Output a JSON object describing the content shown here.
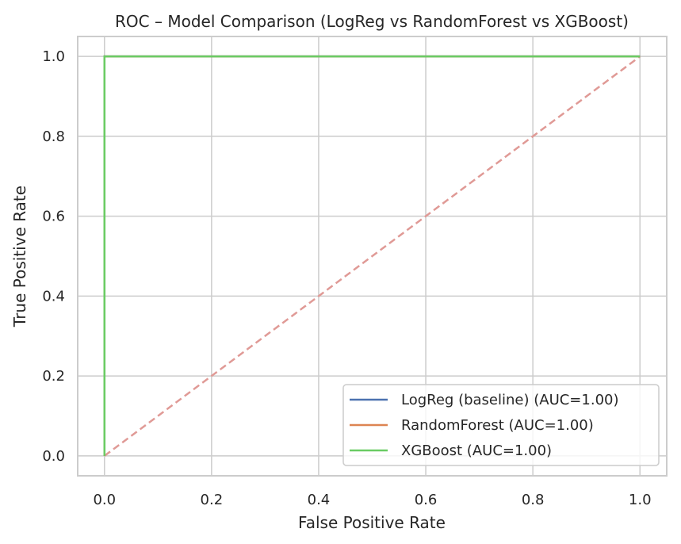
{
  "chart_data": {
    "type": "line",
    "title": "ROC – Model Comparison (LogReg vs RandomForest vs XGBoost)",
    "xlabel": "False Positive Rate",
    "ylabel": "True Positive Rate",
    "xlim": [
      -0.05,
      1.05
    ],
    "ylim": [
      -0.05,
      1.05
    ],
    "xticks": [
      0.0,
      0.2,
      0.4,
      0.6,
      0.8,
      1.0
    ],
    "yticks": [
      0.0,
      0.2,
      0.4,
      0.6,
      0.8,
      1.0
    ],
    "xtick_labels": [
      "0.0",
      "0.2",
      "0.4",
      "0.6",
      "0.8",
      "1.0"
    ],
    "ytick_labels": [
      "0.0",
      "0.2",
      "0.4",
      "0.6",
      "0.8",
      "1.0"
    ],
    "grid": true,
    "legend_position": "lower-right",
    "series": [
      {
        "name": "LogReg (baseline) (AUC=1.00)",
        "color": "#4c72b0",
        "x": [
          0.0,
          0.0,
          1.0
        ],
        "y": [
          0.0,
          1.0,
          1.0
        ]
      },
      {
        "name": "RandomForest (AUC=1.00)",
        "color": "#dd8452",
        "x": [
          0.0,
          0.0,
          1.0
        ],
        "y": [
          0.0,
          1.0,
          1.0
        ]
      },
      {
        "name": "XGBoost (AUC=1.00)",
        "color": "#6acc64",
        "x": [
          0.0,
          0.0,
          1.0
        ],
        "y": [
          0.0,
          1.0,
          1.0
        ]
      }
    ],
    "reference_line": {
      "color": "#e09a96",
      "style": "dashed",
      "x": [
        0.0,
        1.0
      ],
      "y": [
        0.0,
        1.0
      ]
    }
  }
}
